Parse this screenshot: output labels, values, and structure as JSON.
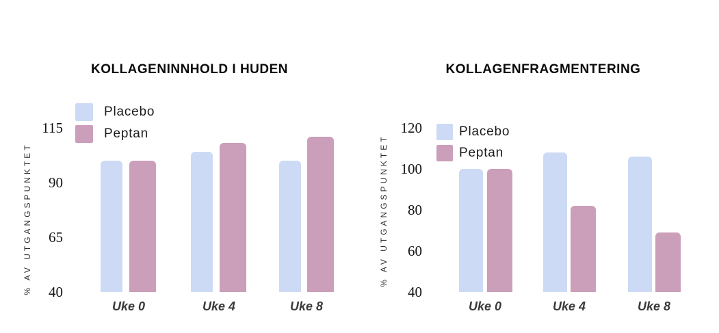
{
  "page": {
    "background": "#ffffff"
  },
  "colors": {
    "placebo": "#ccdaf5",
    "peptan": "#cb9eb9"
  },
  "chart_data": [
    {
      "type": "bar",
      "title": "KOLLAGENINNHOLD I HUDEN",
      "ylabel": "% AV UTGANGSPUNKTET",
      "xlabel": "",
      "categories": [
        "Uke 0",
        "Uke 4",
        "Uke 8"
      ],
      "series": [
        {
          "name": "Placebo",
          "color": "#ccdaf5",
          "values": [
            100,
            104,
            100
          ]
        },
        {
          "name": "Peptan",
          "color": "#cb9eb9",
          "values": [
            100,
            108,
            111
          ]
        }
      ],
      "yticks": [
        40,
        65,
        90,
        115
      ],
      "ylim": [
        40,
        115
      ],
      "grid": false,
      "legend_position": "top-left"
    },
    {
      "type": "bar",
      "title": "KOLLAGENFRAGMENTERING",
      "ylabel": "% AV UTGANGSPUNKTET",
      "xlabel": "",
      "categories": [
        "Uke 0",
        "Uke 4",
        "Uke 8"
      ],
      "series": [
        {
          "name": "Placebo",
          "color": "#ccdaf5",
          "values": [
            100,
            108,
            106
          ]
        },
        {
          "name": "Peptan",
          "color": "#cb9eb9",
          "values": [
            100,
            82,
            69
          ]
        }
      ],
      "yticks": [
        40,
        60,
        80,
        100,
        120
      ],
      "ylim": [
        40,
        120
      ],
      "grid": false,
      "legend_position": "top-left"
    }
  ]
}
